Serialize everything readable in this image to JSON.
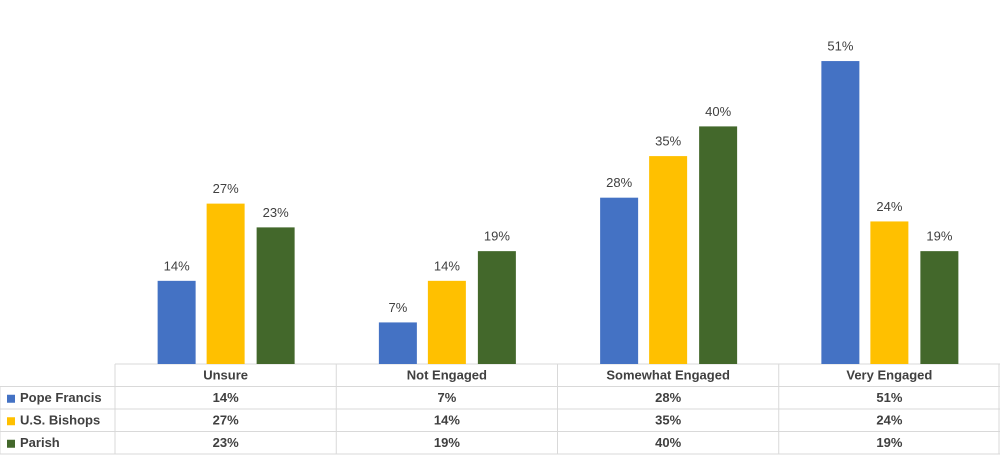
{
  "chart_data": {
    "type": "bar",
    "categories": [
      "Unsure",
      "Not Engaged",
      "Somewhat Engaged",
      "Very Engaged"
    ],
    "series": [
      {
        "name": "Pope Francis",
        "color": "#4472c4",
        "values": [
          14,
          7,
          28,
          51
        ],
        "value_labels": [
          "14%",
          "7%",
          "28%",
          "51%"
        ]
      },
      {
        "name": "U.S. Bishops",
        "color": "#ffc000",
        "values": [
          27,
          14,
          35,
          24
        ],
        "value_labels": [
          "27%",
          "14%",
          "35%",
          "24%"
        ]
      },
      {
        "name": "Parish",
        "color": "#43682b",
        "values": [
          23,
          19,
          40,
          19
        ],
        "value_labels": [
          "23%",
          "19%",
          "40%",
          "19%"
        ]
      }
    ]
  }
}
